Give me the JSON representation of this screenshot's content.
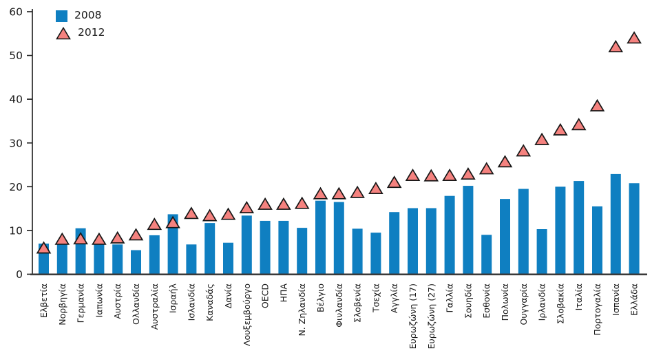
{
  "chart_data": {
    "type": "bar",
    "title": "",
    "xlabel": "",
    "ylabel": "",
    "ylim": [
      0,
      60
    ],
    "yticks": [
      0,
      10,
      20,
      30,
      40,
      50,
      60
    ],
    "grid": false,
    "legend_position": "top-left",
    "categories": [
      "Ελβετία",
      "Νορβηγία",
      "Γερμανία",
      "Ιαπωνία",
      "Αυστρία",
      "Ολλανδία",
      "Αυστραλία",
      "Ισραήλ",
      "Ισλανδία",
      "Καναδάς",
      "Δανία",
      "Λουξεμβούργο",
      "OECD",
      "ΗΠΑ",
      "Ν. Ζηλανδία",
      "Βέλγιο",
      "Φινλανδία",
      "Σλοβενία",
      "Τσεχία",
      "Αγγλία",
      "Ευρωζώνη (17)",
      "Ευρωζώνη (27)",
      "Γαλλία",
      "Σουηδία",
      "Εσθονία",
      "Πολωνία",
      "Ουγγαρία",
      "Ιρλανδία",
      "Σλοβακία",
      "Ιταλία",
      "Πορτογαλία",
      "Ισπανία",
      "Ελλάδα"
    ],
    "series": [
      {
        "name": "2008",
        "type": "bar",
        "color": "#0f7fc1",
        "values": [
          7.0,
          7.0,
          10.5,
          7.1,
          6.8,
          5.5,
          8.9,
          13.7,
          6.8,
          11.7,
          7.2,
          13.4,
          12.2,
          12.2,
          10.6,
          16.8,
          16.5,
          10.4,
          9.5,
          14.2,
          15.1,
          15.1,
          17.9,
          20.2,
          9.0,
          17.2,
          19.5,
          10.3,
          20.0,
          21.3,
          15.5,
          22.9,
          20.8
        ]
      },
      {
        "name": "2012",
        "type": "scatter",
        "marker": "triangle",
        "color": "#f5827f",
        "marker_stroke": "#161616",
        "values": [
          6.0,
          8.0,
          8.1,
          8.0,
          8.3,
          9.0,
          11.4,
          11.8,
          13.9,
          13.4,
          13.7,
          15.2,
          16.0,
          16.0,
          16.2,
          18.4,
          18.4,
          18.7,
          19.6,
          21.0,
          22.6,
          22.5,
          22.6,
          22.9,
          24.1,
          25.7,
          28.2,
          30.8,
          33.0,
          34.2,
          38.5,
          52.0,
          54.0
        ]
      }
    ]
  },
  "colors": {
    "axis": "#1a1a1a",
    "baseline": "#3a3a3a",
    "text": "#1a1a1a",
    "background": "#ffffff"
  }
}
